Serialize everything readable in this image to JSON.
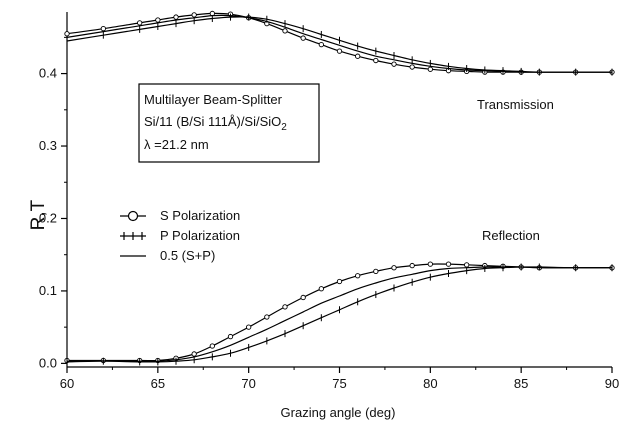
{
  "chart_data": {
    "type": "line",
    "title": "",
    "xlabel": "Grazing angle  (deg)",
    "ylabel": "R,T",
    "xlim": [
      60,
      90
    ],
    "ylim": [
      -0.005,
      0.485
    ],
    "xticks": [
      60,
      65,
      70,
      75,
      80,
      85,
      90
    ],
    "yticks": [
      0.0,
      0.1,
      0.2,
      0.3,
      0.4
    ],
    "ytick_labels": [
      "0.0",
      "0.1",
      "0.2",
      "0.3",
      "0.4"
    ],
    "grid": false,
    "annotations": {
      "box_line1": "Multilayer Beam-Splitter",
      "box_line2": "Si/11 (B/Si 111Å)/Si/SiO",
      "box_line2_sub": "2",
      "box_line3": "λ =21.2 nm",
      "transmission_label": "Transmission",
      "reflection_label": "Reflection"
    },
    "legend": {
      "placement": "left-middle",
      "entries": [
        "S Polarization",
        "P Polarization",
        "0.5 (S+P)"
      ]
    },
    "x": [
      60,
      62,
      64,
      65,
      66,
      67,
      68,
      69,
      70,
      71,
      72,
      73,
      74,
      75,
      76,
      77,
      78,
      79,
      80,
      81,
      82,
      83,
      84,
      85,
      86,
      88,
      90
    ],
    "series": [
      {
        "name": "S Polarization",
        "marker": "circle",
        "curve": "reflection",
        "values": [
          0.004,
          0.004,
          0.004,
          0.004,
          0.007,
          0.013,
          0.024,
          0.037,
          0.05,
          0.064,
          0.078,
          0.091,
          0.103,
          0.113,
          0.121,
          0.127,
          0.132,
          0.135,
          0.137,
          0.137,
          0.136,
          0.135,
          0.134,
          0.133,
          0.132,
          0.132,
          0.132
        ]
      },
      {
        "name": "P Polarization",
        "marker": "plus",
        "curve": "reflection",
        "values": [
          0.002,
          0.003,
          0.002,
          0.002,
          0.003,
          0.005,
          0.009,
          0.014,
          0.022,
          0.031,
          0.041,
          0.052,
          0.063,
          0.074,
          0.085,
          0.095,
          0.104,
          0.112,
          0.119,
          0.124,
          0.128,
          0.131,
          0.132,
          0.133,
          0.133,
          0.132,
          0.132
        ]
      },
      {
        "name": "0.5 (S+P)",
        "marker": "none",
        "curve": "reflection",
        "values": [
          0.003,
          0.0035,
          0.003,
          0.003,
          0.005,
          0.009,
          0.016,
          0.025,
          0.036,
          0.047,
          0.059,
          0.071,
          0.083,
          0.093,
          0.103,
          0.111,
          0.118,
          0.123,
          0.128,
          0.131,
          0.132,
          0.133,
          0.133,
          0.133,
          0.132,
          0.132,
          0.132
        ]
      },
      {
        "name": "S Polarization",
        "marker": "circle",
        "curve": "transmission",
        "values": [
          0.455,
          0.462,
          0.47,
          0.474,
          0.478,
          0.481,
          0.483,
          0.482,
          0.477,
          0.469,
          0.459,
          0.449,
          0.44,
          0.431,
          0.424,
          0.418,
          0.413,
          0.409,
          0.406,
          0.404,
          0.403,
          0.402,
          0.402,
          0.402,
          0.402,
          0.402,
          0.402
        ]
      },
      {
        "name": "P Polarization",
        "marker": "plus",
        "curve": "transmission",
        "values": [
          0.445,
          0.453,
          0.461,
          0.465,
          0.469,
          0.473,
          0.476,
          0.478,
          0.478,
          0.475,
          0.469,
          0.462,
          0.454,
          0.446,
          0.438,
          0.431,
          0.425,
          0.419,
          0.414,
          0.41,
          0.407,
          0.405,
          0.404,
          0.403,
          0.402,
          0.402,
          0.402
        ]
      },
      {
        "name": "0.5 (S+P)",
        "marker": "none",
        "curve": "transmission",
        "values": [
          0.45,
          0.458,
          0.466,
          0.47,
          0.474,
          0.477,
          0.48,
          0.48,
          0.477,
          0.472,
          0.464,
          0.455,
          0.447,
          0.439,
          0.431,
          0.424,
          0.419,
          0.414,
          0.41,
          0.407,
          0.405,
          0.404,
          0.403,
          0.402,
          0.402,
          0.402,
          0.402
        ]
      }
    ]
  }
}
